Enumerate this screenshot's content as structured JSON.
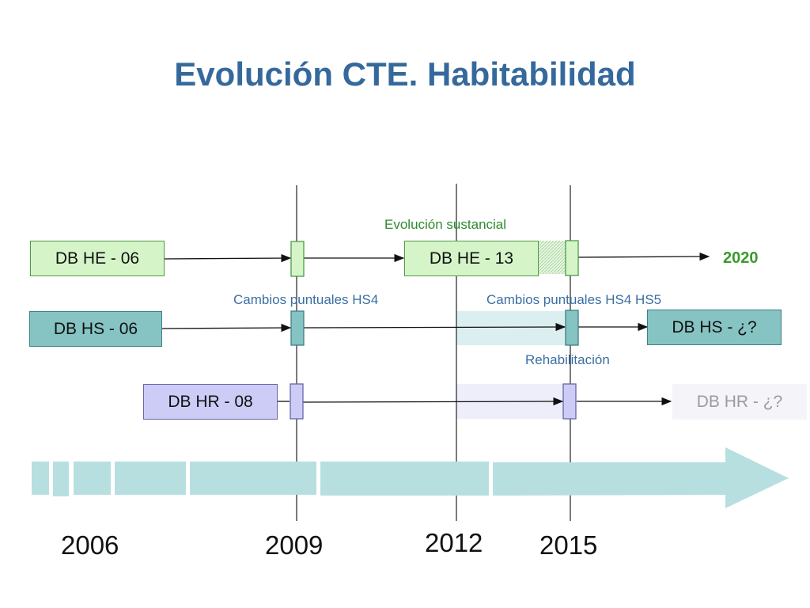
{
  "title": "Evolución CTE. Habitabilidad",
  "years": [
    "2006",
    "2009",
    "2012",
    "2015"
  ],
  "documents": {
    "he_06": "DB HE - 06",
    "he_13": "DB HE - 13",
    "hs_06": "DB HS - 06",
    "hs_future": "DB HS - ¿?",
    "hr_08": "DB HR - 08",
    "hr_future": "DB HR - ¿?"
  },
  "target_year": "2020",
  "notes": {
    "evolucion": "Evolución sustancial",
    "cambios_hs4": "Cambios puntuales HS4",
    "cambios_hs4_hs5": "Cambios puntuales HS4 HS5",
    "rehabilitacion": "Rehabilitación"
  },
  "colors": {
    "title": "#35699c",
    "he": "#d5f5c8",
    "hs": "#86c3c3",
    "hr": "#ccccf7",
    "timeline": "#b8dfe0",
    "target": "#3a9a2c"
  }
}
